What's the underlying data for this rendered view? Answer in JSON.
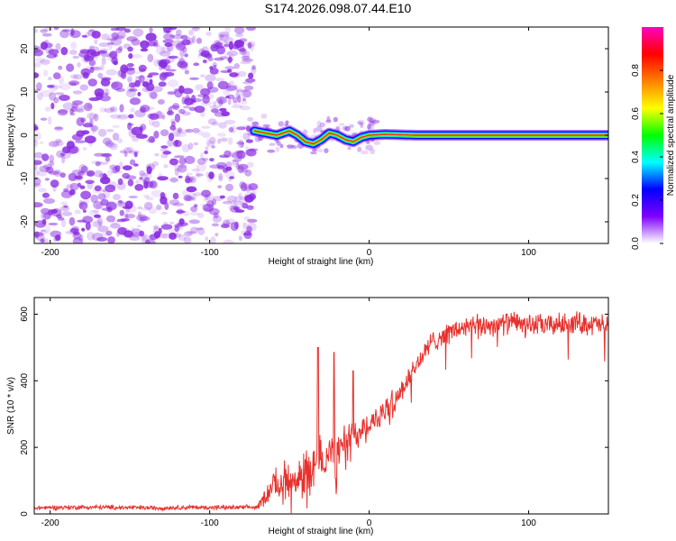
{
  "figure_title": "S174.2026.098.07.44.E10",
  "colors": {
    "snr_line": "#e8302c",
    "spectrogram_noise": "#8a2be2",
    "colorbar": [
      "#ffffff",
      "#7f00ff",
      "#0000ff",
      "#00ffff",
      "#00ff00",
      "#ffff00",
      "#ff8000",
      "#ff0000",
      "#ff00c0"
    ]
  },
  "chart_data": [
    {
      "type": "heatmap",
      "name": "spectrogram",
      "title": "",
      "xlabel": "Height of straight line (km)",
      "ylabel": "Frequency (Hz)",
      "xlim": [
        -210,
        150
      ],
      "ylim": [
        -25,
        25
      ],
      "xticks": [
        -200,
        -100,
        0,
        100
      ],
      "xtick_labels": [
        "-200",
        "-100",
        "0",
        "100"
      ],
      "yticks": [
        -20,
        -10,
        0,
        10,
        20
      ],
      "ytick_labels": [
        "-20",
        "-10",
        "0",
        "10",
        "20"
      ],
      "noise_region_x": [
        -210,
        -72
      ],
      "signal_ridge": {
        "x": [
          -72,
          -65,
          -58,
          -50,
          -45,
          -40,
          -35,
          -30,
          -25,
          -20,
          -15,
          -10,
          -5,
          0,
          10,
          30,
          60,
          90,
          120,
          150
        ],
        "frequency": [
          1.0,
          0.5,
          0.0,
          1.0,
          0.0,
          -1.5,
          -2.0,
          -1.0,
          0.5,
          0.0,
          -1.0,
          -1.5,
          -0.5,
          0.0,
          0.2,
          0.0,
          0.0,
          0.0,
          0.0,
          0.0
        ]
      },
      "colorbar": {
        "label": "Normalized spectral amplitude",
        "range": [
          0.0,
          1.0
        ],
        "ticks": [
          0.0,
          0.2,
          0.4,
          0.6,
          0.8
        ],
        "tick_labels": [
          "0.0",
          "0.2",
          "0.4",
          "0.6",
          "0.8"
        ]
      }
    },
    {
      "type": "line",
      "name": "snr",
      "title": "",
      "xlabel": "Height of straight line (km)",
      "ylabel": "SNR (10 * v/v)",
      "xlim": [
        -210,
        150
      ],
      "ylim": [
        0,
        650
      ],
      "xticks": [
        -200,
        -100,
        0,
        100
      ],
      "xtick_labels": [
        "-200",
        "-100",
        "0",
        "100"
      ],
      "yticks": [
        0,
        200,
        400,
        600
      ],
      "ytick_labels": [
        "0",
        "200",
        "400",
        "600"
      ],
      "series": [
        {
          "name": "SNR",
          "x": [
            -210,
            -190,
            -170,
            -150,
            -130,
            -110,
            -90,
            -70,
            -60,
            -50,
            -40,
            -30,
            -20,
            -10,
            0,
            10,
            20,
            30,
            40,
            50,
            60,
            70,
            80,
            90,
            100,
            110,
            120,
            130,
            140,
            150
          ],
          "values": [
            18,
            20,
            20,
            19,
            18,
            20,
            19,
            20,
            90,
            100,
            130,
            160,
            190,
            230,
            270,
            310,
            370,
            450,
            520,
            545,
            560,
            565,
            570,
            575,
            570,
            565,
            570,
            575,
            570,
            565
          ],
          "noise_amplitude": [
            8,
            8,
            8,
            8,
            8,
            8,
            8,
            8,
            60,
            80,
            90,
            90,
            90,
            70,
            45,
            45,
            45,
            40,
            40,
            40,
            40,
            40,
            40,
            40,
            40,
            40,
            40,
            40,
            40,
            40
          ],
          "spikes": [
            {
              "x": -32,
              "value": 500
            },
            {
              "x": -22,
              "value": 485
            },
            {
              "x": -10,
              "value": 430
            }
          ]
        }
      ]
    }
  ]
}
